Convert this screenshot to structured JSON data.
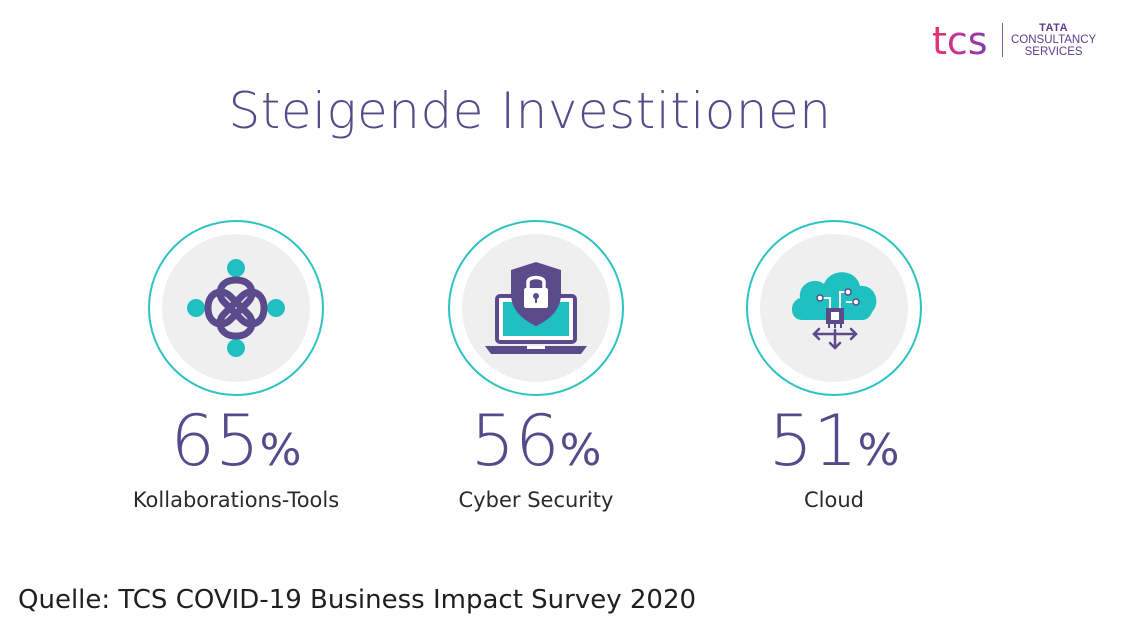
{
  "logo": {
    "mark": "tcs",
    "line1": "TATA",
    "line2": "CONSULTANCY",
    "line3": "SERVICES"
  },
  "title": "Steigende Investitionen",
  "stats": [
    {
      "value": "65",
      "unit": "%",
      "label": "Kollaborations-Tools",
      "icon": "collaboration-icon"
    },
    {
      "value": "56",
      "unit": "%",
      "label": "Cyber Security",
      "icon": "laptop-lock-icon"
    },
    {
      "value": "51",
      "unit": "%",
      "label": "Cloud",
      "icon": "cloud-chip-icon"
    }
  ],
  "source": "Quelle: TCS COVID-19 Business Impact Survey 2020",
  "colors": {
    "title": "#574a8a",
    "accent_teal": "#2ec3c3",
    "icon_purple": "#5b4a8c",
    "icon_teal": "#1fc0c0",
    "circle_fill": "#efefef"
  }
}
